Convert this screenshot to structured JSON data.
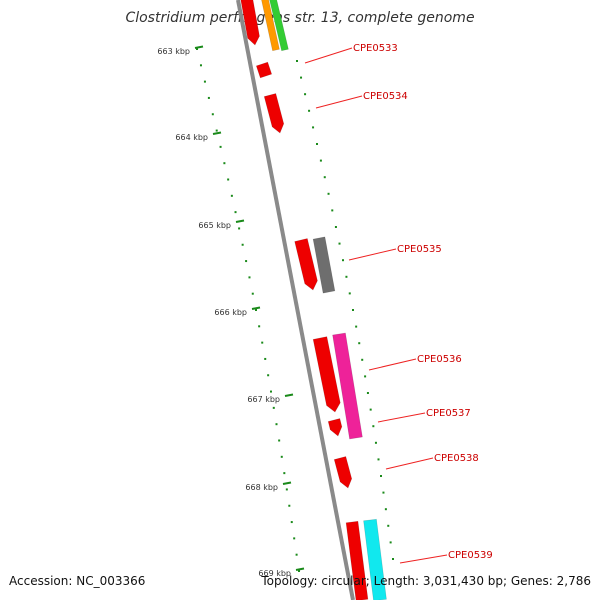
{
  "title": "Clostridium perfringens str. 13, complete genome",
  "footer": {
    "accession": "Accession: NC_003366",
    "summary": "Topology: circular; Length: 3,031,430 bp; Genes: 2,786"
  },
  "colors": {
    "ticks": "#1a8a1a",
    "backbone": "#8a8a8a",
    "gene_label": "#cc0000",
    "leader": "#ee2222",
    "cds_red": "#ee0000",
    "gray": "#6e6e6e",
    "magenta": "#ee2299",
    "cyan": "#11e8ee",
    "orange": "#ff9900",
    "green": "#33cc33"
  },
  "kbp_labels": [
    "663 kbp",
    "664 kbp",
    "665 kbp",
    "666 kbp",
    "667 kbp",
    "668 kbp",
    "669 kbp"
  ],
  "gene_labels": [
    "CPE0533",
    "CPE0534",
    "CPE0535",
    "CPE0536",
    "CPE0537",
    "CPE0538",
    "CPE0539"
  ]
}
